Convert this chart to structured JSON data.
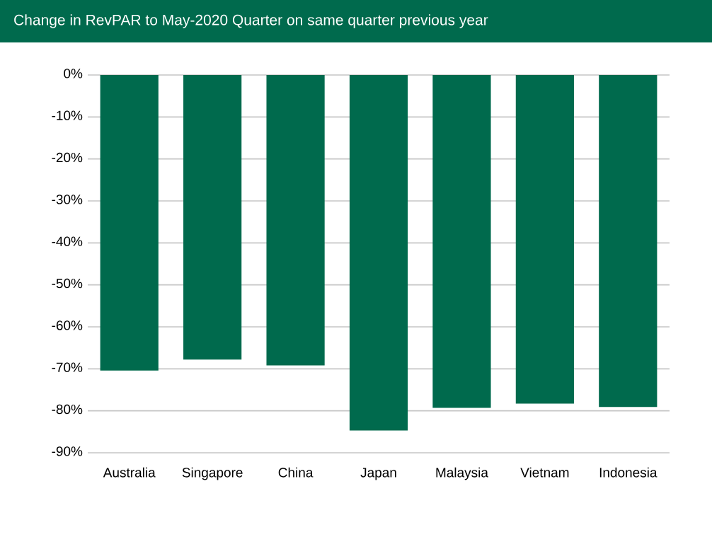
{
  "chart_data": {
    "type": "bar",
    "title": "Change in RevPAR to May-2020 Quarter on same quarter previous year",
    "categories": [
      "Australia",
      "Singapore",
      "China",
      "Japan",
      "Malaysia",
      "Vietnam",
      "Indonesia"
    ],
    "values": [
      -70.4,
      -67.8,
      -69.2,
      -84.7,
      -79.3,
      -78.3,
      -79.1
    ],
    "color": "#006a4d",
    "ylim": [
      -90,
      0
    ],
    "yticks": [
      {
        "value": 0,
        "label": "0%"
      },
      {
        "value": -10,
        "label": "-10%"
      },
      {
        "value": -20,
        "label": "-20%"
      },
      {
        "value": -30,
        "label": "-30%"
      },
      {
        "value": -40,
        "label": "-40%"
      },
      {
        "value": -50,
        "label": "-50%"
      },
      {
        "value": -60,
        "label": "-60%"
      },
      {
        "value": -70,
        "label": "-70%"
      },
      {
        "value": -80,
        "label": "-80%"
      },
      {
        "value": -90,
        "label": "-90%"
      }
    ],
    "grid": "y"
  }
}
